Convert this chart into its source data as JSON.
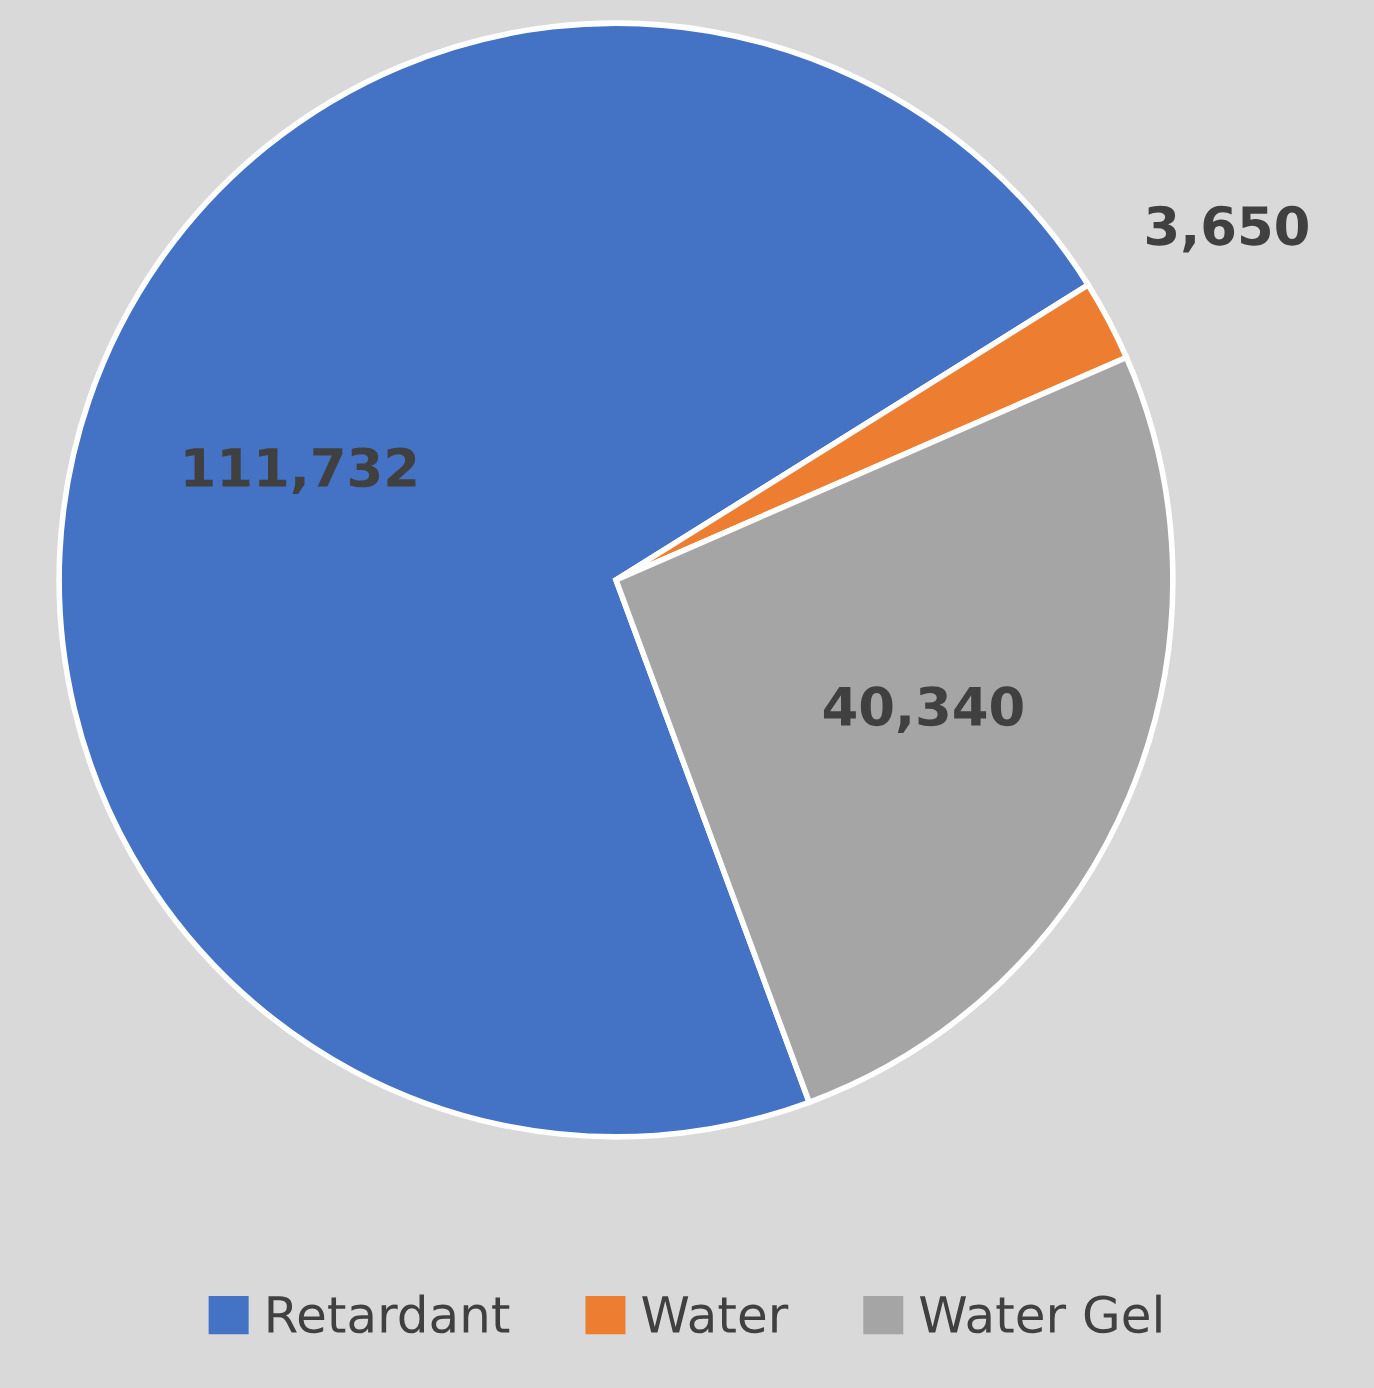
{
  "chart_data": {
    "type": "pie",
    "categories": [
      "Retardant",
      "Water",
      "Water Gel"
    ],
    "values": [
      111732,
      3650,
      40340
    ],
    "colors": [
      "#4472c4",
      "#ed7d31",
      "#a5a5a5"
    ],
    "value_labels": [
      "111,732",
      "3,650",
      "40,340"
    ],
    "legend": "bottom"
  }
}
